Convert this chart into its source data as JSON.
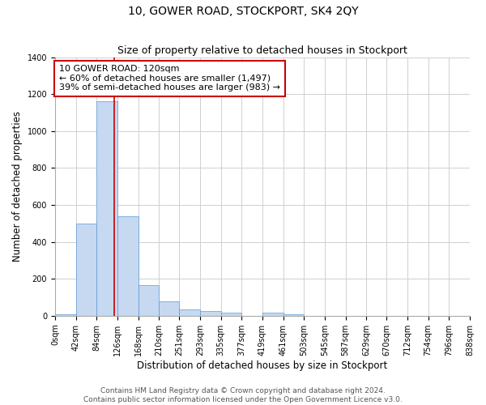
{
  "title": "10, GOWER ROAD, STOCKPORT, SK4 2QY",
  "subtitle": "Size of property relative to detached houses in Stockport",
  "xlabel": "Distribution of detached houses by size in Stockport",
  "ylabel": "Number of detached properties",
  "footer1": "Contains HM Land Registry data © Crown copyright and database right 2024.",
  "footer2": "Contains public sector information licensed under the Open Government Licence v3.0.",
  "bar_edges": [
    0,
    42,
    84,
    126,
    168,
    210,
    251,
    293,
    335,
    377,
    419,
    461,
    503,
    545,
    587,
    629,
    670,
    712,
    754,
    796,
    838
  ],
  "bar_labels": [
    "0sqm",
    "42sqm",
    "84sqm",
    "126sqm",
    "168sqm",
    "210sqm",
    "251sqm",
    "293sqm",
    "335sqm",
    "377sqm",
    "419sqm",
    "461sqm",
    "503sqm",
    "545sqm",
    "587sqm",
    "629sqm",
    "670sqm",
    "712sqm",
    "754sqm",
    "796sqm",
    "838sqm"
  ],
  "bar_heights": [
    10,
    500,
    1160,
    540,
    165,
    80,
    35,
    25,
    15,
    0,
    15,
    10,
    0,
    0,
    0,
    0,
    0,
    0,
    0,
    0
  ],
  "bar_color": "#c6d9f0",
  "bar_edge_color": "#5b9bd5",
  "property_line_x": 120,
  "property_line_color": "#cc0000",
  "annotation_line1": "10 GOWER ROAD: 120sqm",
  "annotation_line2": "← 60% of detached houses are smaller (1,497)",
  "annotation_line3": "39% of semi-detached houses are larger (983) →",
  "annotation_box_color": "#ffffff",
  "annotation_box_edge_color": "#cc0000",
  "ylim": [
    0,
    1400
  ],
  "yticks": [
    0,
    200,
    400,
    600,
    800,
    1000,
    1200,
    1400
  ],
  "grid_color": "#d0d0d0",
  "background_color": "#ffffff",
  "title_fontsize": 10,
  "subtitle_fontsize": 9,
  "axis_label_fontsize": 8.5,
  "tick_fontsize": 7,
  "annotation_fontsize": 8,
  "footer_fontsize": 6.5
}
